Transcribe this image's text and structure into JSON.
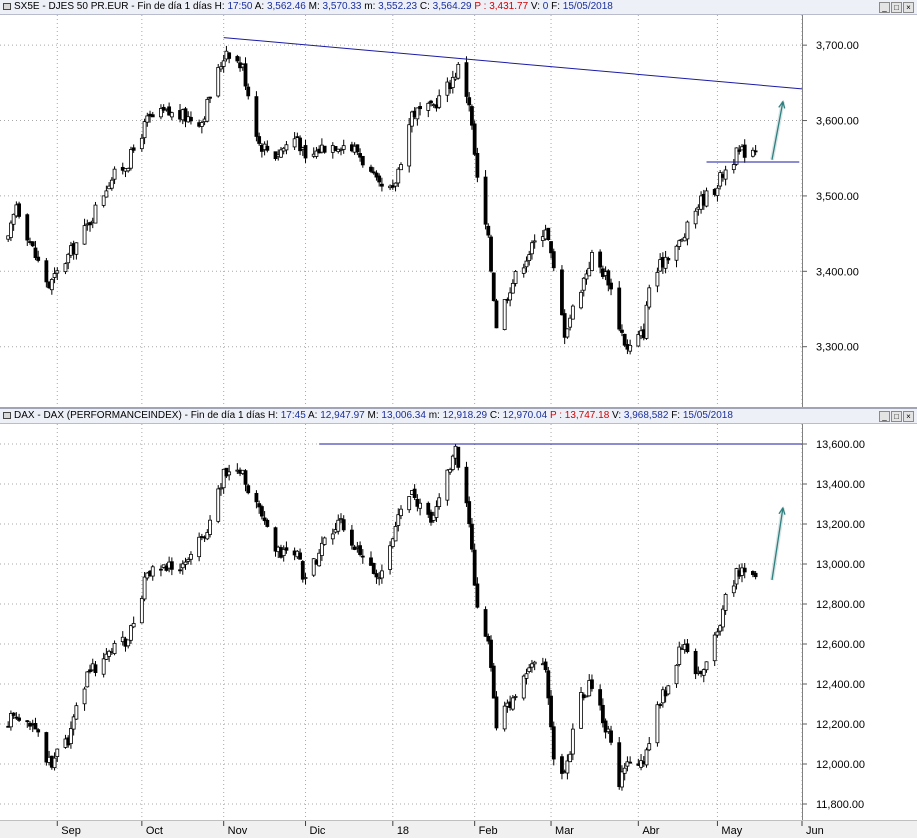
{
  "panels": [
    {
      "id": "sx5e",
      "header": {
        "symbol": "SX5E - DJES 50 PR.EUR",
        "period": "Fin de día 1 días",
        "h_label": "H:",
        "h_value": "17:50",
        "a_label": "A:",
        "a_value": "3,562.46",
        "m_label": "M:",
        "m_value": "3,570.33",
        "min_label": "m:",
        "min_value": "3,552.23",
        "c_label": "C:",
        "c_value": "3,564.29",
        "p_label": "P :",
        "p_value": "3,431.77",
        "v_label": "V:",
        "v_value": "0",
        "f_label": "F:",
        "f_value": "15/05/2018"
      }
    },
    {
      "id": "dax",
      "header": {
        "symbol": "DAX - DAX (PERFORMANCEINDEX)",
        "period": "Fin de día 1 días",
        "h_label": "H:",
        "h_value": "17:45",
        "a_label": "A:",
        "a_value": "12,947.97",
        "m_label": "M:",
        "m_value": "13,006.34",
        "min_label": "m:",
        "min_value": "12,918.29",
        "c_label": "C:",
        "c_value": "12,970.04",
        "p_label": "P :",
        "p_value": "13,747.18",
        "v_label": "V:",
        "v_value": "3,968,582",
        "f_label": "F:",
        "f_value": "15/05/2018"
      }
    }
  ],
  "window_buttons": [
    "_",
    "□",
    "×"
  ],
  "chart_data": [
    {
      "type": "candlestick",
      "title": "",
      "ylim": [
        3220,
        3740
      ],
      "y_ticks": [
        3300,
        3400,
        3500,
        3600,
        3700
      ],
      "y_tick_labels": [
        "3,300.00",
        "3,400.00",
        "3,500.00",
        "3,600.00",
        "3,700.00"
      ],
      "x_ticks": [
        "2017-09-01",
        "2017-10-02",
        "2017-11-01",
        "2017-12-01",
        "2018-01-02",
        "2018-02-01",
        "2018-03-01",
        "2018-04-02",
        "2018-05-01",
        "2018-06-01"
      ],
      "x_tick_labels": [
        "Sep",
        "Oct",
        "Nov",
        "Dic",
        "18",
        "Feb",
        "Mar",
        "Abr",
        "May",
        "Jun"
      ],
      "key_points": [
        {
          "date": "2017-08-14",
          "close": 3440
        },
        {
          "date": "2017-08-17",
          "close": 3490
        },
        {
          "date": "2017-08-24",
          "close": 3420
        },
        {
          "date": "2017-08-29",
          "close": 3380
        },
        {
          "date": "2017-09-05",
          "close": 3420
        },
        {
          "date": "2017-09-12",
          "close": 3460
        },
        {
          "date": "2017-09-20",
          "close": 3520
        },
        {
          "date": "2017-09-27",
          "close": 3545
        },
        {
          "date": "2017-10-04",
          "close": 3600
        },
        {
          "date": "2017-10-10",
          "close": 3610
        },
        {
          "date": "2017-10-18",
          "close": 3605
        },
        {
          "date": "2017-10-24",
          "close": 3600
        },
        {
          "date": "2017-10-30",
          "close": 3665
        },
        {
          "date": "2017-11-02",
          "close": 3695
        },
        {
          "date": "2017-11-08",
          "close": 3670
        },
        {
          "date": "2017-11-14",
          "close": 3570
        },
        {
          "date": "2017-11-20",
          "close": 3555
        },
        {
          "date": "2017-11-28",
          "close": 3580
        },
        {
          "date": "2017-12-01",
          "close": 3545
        },
        {
          "date": "2017-12-07",
          "close": 3565
        },
        {
          "date": "2017-12-14",
          "close": 3570
        },
        {
          "date": "2017-12-20",
          "close": 3560
        },
        {
          "date": "2017-12-28",
          "close": 3510
        },
        {
          "date": "2018-01-02",
          "close": 3505
        },
        {
          "date": "2018-01-09",
          "close": 3610
        },
        {
          "date": "2018-01-16",
          "close": 3615
        },
        {
          "date": "2018-01-23",
          "close": 3650
        },
        {
          "date": "2018-01-26",
          "close": 3670
        },
        {
          "date": "2018-01-30",
          "close": 3625
        },
        {
          "date": "2018-02-02",
          "close": 3520
        },
        {
          "date": "2018-02-06",
          "close": 3440
        },
        {
          "date": "2018-02-09",
          "close": 3330
        },
        {
          "date": "2018-02-14",
          "close": 3380
        },
        {
          "date": "2018-02-20",
          "close": 3420
        },
        {
          "date": "2018-02-27",
          "close": 3460
        },
        {
          "date": "2018-03-02",
          "close": 3400
        },
        {
          "date": "2018-03-06",
          "close": 3320
        },
        {
          "date": "2018-03-12",
          "close": 3380
        },
        {
          "date": "2018-03-16",
          "close": 3420
        },
        {
          "date": "2018-03-22",
          "close": 3390
        },
        {
          "date": "2018-03-26",
          "close": 3330
        },
        {
          "date": "2018-03-29",
          "close": 3295
        },
        {
          "date": "2018-04-04",
          "close": 3320
        },
        {
          "date": "2018-04-06",
          "close": 3380
        },
        {
          "date": "2018-04-12",
          "close": 3420
        },
        {
          "date": "2018-04-18",
          "close": 3440
        },
        {
          "date": "2018-04-24",
          "close": 3490
        },
        {
          "date": "2018-04-30",
          "close": 3510
        },
        {
          "date": "2018-05-03",
          "close": 3530
        },
        {
          "date": "2018-05-08",
          "close": 3555
        },
        {
          "date": "2018-05-15",
          "close": 3565
        }
      ],
      "lines": [
        {
          "from": {
            "date": "2017-11-01",
            "value": 3710
          },
          "to": {
            "date": "2018-06-01",
            "value": 3642
          },
          "color": "#1a1aa6"
        },
        {
          "from": {
            "date": "2018-04-27",
            "value": 3545
          },
          "to": {
            "date": "2018-05-31",
            "value": 3545
          },
          "color": "#1a1aa6"
        }
      ],
      "arrow": {
        "from": {
          "date": "2018-05-21",
          "value": 3548
        },
        "to": {
          "date": "2018-05-25",
          "value": 3625
        },
        "color": "#2f7f7f"
      }
    },
    {
      "type": "candlestick",
      "title": "",
      "ylim": [
        11720,
        13700
      ],
      "y_ticks": [
        11800,
        12000,
        12200,
        12400,
        12600,
        12800,
        13000,
        13200,
        13400,
        13600
      ],
      "y_tick_labels": [
        "11,800.00",
        "12,000.00",
        "12,200.00",
        "12,400.00",
        "12,600.00",
        "12,800.00",
        "13,000.00",
        "13,200.00",
        "13,400.00",
        "13,600.00"
      ],
      "x_ticks": [
        "2017-09-01",
        "2017-10-02",
        "2017-11-01",
        "2017-12-01",
        "2018-01-02",
        "2018-02-01",
        "2018-03-01",
        "2018-04-02",
        "2018-05-01",
        "2018-06-01"
      ],
      "x_tick_labels": [
        "Sep",
        "Oct",
        "Nov",
        "Dic",
        "18",
        "Feb",
        "Mar",
        "Abr",
        "May",
        "Jun"
      ],
      "key_points": [
        {
          "date": "2017-08-14",
          "close": 12200
        },
        {
          "date": "2017-08-17",
          "close": 12260
        },
        {
          "date": "2017-08-24",
          "close": 12180
        },
        {
          "date": "2017-08-29",
          "close": 12000
        },
        {
          "date": "2017-09-05",
          "close": 12120
        },
        {
          "date": "2017-09-12",
          "close": 12450
        },
        {
          "date": "2017-09-20",
          "close": 12560
        },
        {
          "date": "2017-09-27",
          "close": 12620
        },
        {
          "date": "2017-10-04",
          "close": 12950
        },
        {
          "date": "2017-10-12",
          "close": 12980
        },
        {
          "date": "2017-10-19",
          "close": 13020
        },
        {
          "date": "2017-10-27",
          "close": 13200
        },
        {
          "date": "2017-11-01",
          "close": 13450
        },
        {
          "date": "2017-11-07",
          "close": 13480
        },
        {
          "date": "2017-11-13",
          "close": 13300
        },
        {
          "date": "2017-11-20",
          "close": 13050
        },
        {
          "date": "2017-11-28",
          "close": 13050
        },
        {
          "date": "2017-12-01",
          "close": 12900
        },
        {
          "date": "2017-12-07",
          "close": 13100
        },
        {
          "date": "2017-12-14",
          "close": 13200
        },
        {
          "date": "2017-12-20",
          "close": 13050
        },
        {
          "date": "2017-12-28",
          "close": 12920
        },
        {
          "date": "2018-01-03",
          "close": 13200
        },
        {
          "date": "2018-01-09",
          "close": 13350
        },
        {
          "date": "2018-01-16",
          "close": 13200
        },
        {
          "date": "2018-01-23",
          "close": 13500
        },
        {
          "date": "2018-01-25",
          "close": 13560
        },
        {
          "date": "2018-01-29",
          "close": 13300
        },
        {
          "date": "2018-02-02",
          "close": 12800
        },
        {
          "date": "2018-02-06",
          "close": 12600
        },
        {
          "date": "2018-02-09",
          "close": 12200
        },
        {
          "date": "2018-02-14",
          "close": 12300
        },
        {
          "date": "2018-02-21",
          "close": 12500
        },
        {
          "date": "2018-02-27",
          "close": 12500
        },
        {
          "date": "2018-03-02",
          "close": 12000
        },
        {
          "date": "2018-03-06",
          "close": 11950
        },
        {
          "date": "2018-03-12",
          "close": 12350
        },
        {
          "date": "2018-03-16",
          "close": 12400
        },
        {
          "date": "2018-03-22",
          "close": 12150
        },
        {
          "date": "2018-03-26",
          "close": 11900
        },
        {
          "date": "2018-03-29",
          "close": 12000
        },
        {
          "date": "2018-04-04",
          "close": 12000
        },
        {
          "date": "2018-04-09",
          "close": 12300
        },
        {
          "date": "2018-04-13",
          "close": 12400
        },
        {
          "date": "2018-04-18",
          "close": 12600
        },
        {
          "date": "2018-04-24",
          "close": 12450
        },
        {
          "date": "2018-04-30",
          "close": 12620
        },
        {
          "date": "2018-05-04",
          "close": 12820
        },
        {
          "date": "2018-05-08",
          "close": 12950
        },
        {
          "date": "2018-05-15",
          "close": 12970
        }
      ],
      "lines": [
        {
          "from": {
            "date": "2017-12-06",
            "value": 13600
          },
          "to": {
            "date": "2018-06-01",
            "value": 13600
          },
          "color": "#1a1aa6"
        }
      ],
      "arrow": {
        "from": {
          "date": "2018-05-21",
          "value": 12920
        },
        "to": {
          "date": "2018-05-25",
          "value": 13280
        },
        "color": "#2f7f7f"
      }
    }
  ]
}
